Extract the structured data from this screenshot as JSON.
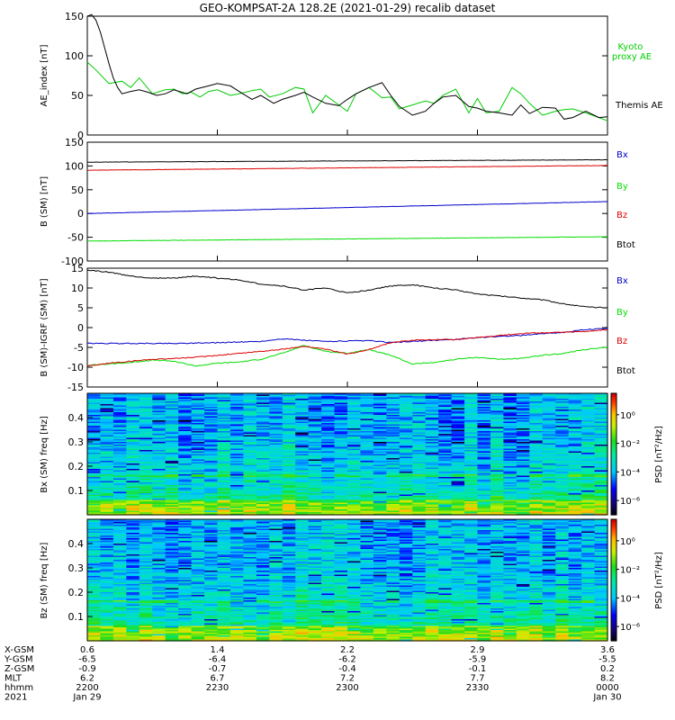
{
  "title": "GEO-KOMPSAT-2A 128.2E (2021-01-29) recalib dataset",
  "colors": {
    "black": "#000000",
    "green": "#00dd00",
    "red": "#dd0000",
    "blue": "#0000cc",
    "kyoto": "#00cc00"
  },
  "chart_data": [
    {
      "type": "line",
      "id": "ae",
      "ylabel": "AE_index [nT]",
      "ylim": [
        0,
        150
      ],
      "yticks": [
        0,
        50,
        100,
        150
      ],
      "x_unit": "minutes from 2021-01-29 22:00 UT",
      "xlim": [
        0,
        120
      ],
      "series": [
        {
          "name": "Kyoto proxy AE",
          "color": "#00cc00",
          "x": [
            0,
            2,
            5,
            8,
            10,
            12,
            15,
            18,
            20,
            22,
            24,
            26,
            28,
            30,
            33,
            35,
            38,
            40,
            42,
            45,
            48,
            50,
            52,
            55,
            58,
            60,
            62,
            65,
            68,
            70,
            72,
            75,
            78,
            80,
            82,
            85,
            88,
            90,
            92,
            95,
            98,
            100,
            102,
            105,
            108,
            110,
            112,
            115,
            118,
            120
          ],
          "y": [
            92,
            82,
            65,
            68,
            60,
            72,
            52,
            57,
            58,
            52,
            54,
            48,
            55,
            57,
            50,
            52,
            56,
            58,
            48,
            52,
            60,
            58,
            28,
            50,
            38,
            30,
            52,
            60,
            47,
            48,
            33,
            38,
            43,
            40,
            50,
            58,
            28,
            46,
            28,
            30,
            60,
            52,
            40,
            25,
            30,
            32,
            33,
            28,
            22,
            18
          ]
        },
        {
          "name": "Themis AE",
          "color": "#000000",
          "x": [
            0,
            1,
            2,
            3,
            4,
            5,
            6,
            7,
            8,
            10,
            12,
            14,
            16,
            18,
            20,
            23,
            25,
            28,
            30,
            33,
            35,
            38,
            40,
            43,
            45,
            48,
            50,
            52,
            55,
            58,
            60,
            62,
            65,
            68,
            70,
            72,
            75,
            78,
            80,
            82,
            85,
            88,
            90,
            92,
            95,
            98,
            100,
            102,
            105,
            108,
            110,
            112,
            115,
            118,
            120
          ],
          "y": [
            150,
            152,
            145,
            130,
            110,
            90,
            72,
            60,
            52,
            55,
            57,
            54,
            50,
            52,
            57,
            52,
            58,
            62,
            65,
            62,
            55,
            45,
            50,
            40,
            45,
            50,
            54,
            48,
            40,
            37,
            45,
            52,
            60,
            66,
            50,
            36,
            25,
            30,
            40,
            48,
            50,
            36,
            34,
            30,
            28,
            25,
            38,
            27,
            35,
            34,
            20,
            22,
            30,
            22,
            23
          ]
        }
      ]
    },
    {
      "type": "line",
      "id": "bsm",
      "ylabel": "B (SM) [nT]",
      "ylim": [
        -100,
        150
      ],
      "yticks": [
        -100,
        -50,
        0,
        50,
        100,
        150
      ],
      "x_unit": "minutes from 2021-01-29 22:00 UT",
      "xlim": [
        0,
        120
      ],
      "series": [
        {
          "name": "Bx",
          "color": "#0000cc",
          "x": [
            0,
            120
          ],
          "y": [
            0,
            25
          ]
        },
        {
          "name": "By",
          "color": "#00dd00",
          "x": [
            0,
            120
          ],
          "y": [
            -58,
            -49
          ]
        },
        {
          "name": "Bz",
          "color": "#dd0000",
          "x": [
            0,
            120
          ],
          "y": [
            91,
            101
          ]
        },
        {
          "name": "Btot",
          "color": "#000000",
          "x": [
            0,
            120
          ],
          "y": [
            108,
            113
          ]
        }
      ]
    },
    {
      "type": "line",
      "id": "bdiff",
      "ylabel": "B (SM)-IGRF (SM) [nT]",
      "ylim": [
        -15,
        15
      ],
      "yticks": [
        -15,
        -10,
        -5,
        0,
        5,
        10,
        15
      ],
      "x_unit": "minutes from 2021-01-29 22:00 UT",
      "xlim": [
        0,
        120
      ],
      "series": [
        {
          "name": "Bx",
          "color": "#0000cc",
          "x": [
            0,
            10,
            20,
            30,
            40,
            45,
            50,
            55,
            60,
            65,
            70,
            75,
            80,
            85,
            90,
            95,
            100,
            105,
            110,
            115,
            120
          ],
          "y": [
            -4,
            -4,
            -4,
            -3.8,
            -3.5,
            -2.8,
            -3.2,
            -3.5,
            -3.4,
            -3.3,
            -3.8,
            -3.5,
            -3.2,
            -3,
            -2.5,
            -2.2,
            -2,
            -1.5,
            -1.2,
            -0.5,
            -0.2
          ]
        },
        {
          "name": "By",
          "color": "#00dd00",
          "x": [
            0,
            5,
            10,
            15,
            20,
            25,
            30,
            35,
            40,
            45,
            50,
            55,
            60,
            65,
            70,
            75,
            80,
            85,
            90,
            95,
            100,
            105,
            110,
            115,
            120
          ],
          "y": [
            -9.5,
            -9.2,
            -8.8,
            -8.2,
            -8.5,
            -9.7,
            -9,
            -8.7,
            -8,
            -6.5,
            -4.5,
            -6,
            -6.5,
            -5.5,
            -7,
            -9.2,
            -8.8,
            -8,
            -7.5,
            -8,
            -7.8,
            -7,
            -6.5,
            -5.5,
            -5
          ]
        },
        {
          "name": "Bz",
          "color": "#dd0000",
          "x": [
            0,
            5,
            10,
            15,
            20,
            25,
            30,
            35,
            40,
            45,
            50,
            55,
            60,
            65,
            70,
            75,
            80,
            85,
            90,
            95,
            100,
            105,
            110,
            115,
            120
          ],
          "y": [
            -9.7,
            -9,
            -8.5,
            -8,
            -7.8,
            -7.5,
            -7,
            -6.5,
            -6,
            -5.5,
            -4.7,
            -5.5,
            -6.7,
            -5.5,
            -3.8,
            -3.2,
            -3,
            -3,
            -2.5,
            -2,
            -1.5,
            -1.3,
            -1.2,
            -1,
            -0.5
          ]
        },
        {
          "name": "Btot",
          "color": "#000000",
          "x": [
            0,
            5,
            10,
            15,
            20,
            25,
            30,
            35,
            40,
            45,
            50,
            55,
            60,
            65,
            70,
            75,
            80,
            85,
            90,
            95,
            100,
            105,
            110,
            115,
            120
          ],
          "y": [
            14.5,
            14,
            13,
            12.5,
            12.5,
            13,
            12.5,
            12,
            11,
            10.5,
            9.5,
            10,
            8.7,
            9.5,
            10.5,
            10.8,
            10,
            9.5,
            8.5,
            8,
            7.5,
            7,
            6,
            5.2,
            5
          ]
        }
      ]
    },
    {
      "type": "heatmap",
      "id": "bx_spec",
      "ylabel": "Bx (SM) freq [Hz]",
      "yticks": [
        0.1,
        0.2,
        0.3,
        0.4
      ],
      "ylim": [
        0,
        0.5
      ],
      "colorbar_label": "PSD [nT²/Hz]",
      "colorbar_ticks": [
        "10⁰",
        "10⁻²",
        "10⁻⁴",
        "10⁻⁶"
      ],
      "colorbar_exponents": [
        0,
        -2,
        -4,
        -6
      ],
      "colorbar_range": [
        -7,
        1.5
      ]
    },
    {
      "type": "heatmap",
      "id": "bz_spec",
      "ylabel": "Bz (SM) freq [Hz]",
      "yticks": [
        0.1,
        0.2,
        0.3,
        0.4
      ],
      "ylim": [
        0,
        0.5
      ],
      "colorbar_label": "PSD [nT²/Hz]",
      "colorbar_ticks": [
        "10⁰",
        "10⁻²",
        "10⁻⁴",
        "10⁻⁶"
      ],
      "colorbar_exponents": [
        0,
        -2,
        -4,
        -6
      ],
      "colorbar_range": [
        -7,
        1.5
      ]
    }
  ],
  "legends": {
    "ae": [
      "Kyoto proxy AE",
      "Themis AE"
    ],
    "b": [
      "Bx",
      "By",
      "Bz",
      "Btot"
    ]
  },
  "ephemeris": {
    "rows": [
      {
        "label": "X-GSM",
        "values": [
          "0.6",
          "1.4",
          "2.2",
          "2.9",
          "3.6"
        ]
      },
      {
        "label": "Y-GSM",
        "values": [
          "-6.5",
          "-6.4",
          "-6.2",
          "-5.9",
          "-5.5"
        ]
      },
      {
        "label": "Z-GSM",
        "values": [
          "-0.9",
          "-0.7",
          "-0.4",
          "-0.1",
          "0.2"
        ]
      },
      {
        "label": "MLT",
        "values": [
          "6.2",
          "6.7",
          "7.2",
          "7.7",
          "8.2"
        ]
      },
      {
        "label": "hhmm",
        "values": [
          "2200",
          "2230",
          "2300",
          "2330",
          "0000"
        ]
      },
      {
        "label": "2021",
        "values": [
          "Jan 29",
          "",
          "",
          "",
          "Jan 30"
        ]
      }
    ],
    "tick_minutes": [
      0,
      30,
      60,
      90,
      120
    ]
  }
}
